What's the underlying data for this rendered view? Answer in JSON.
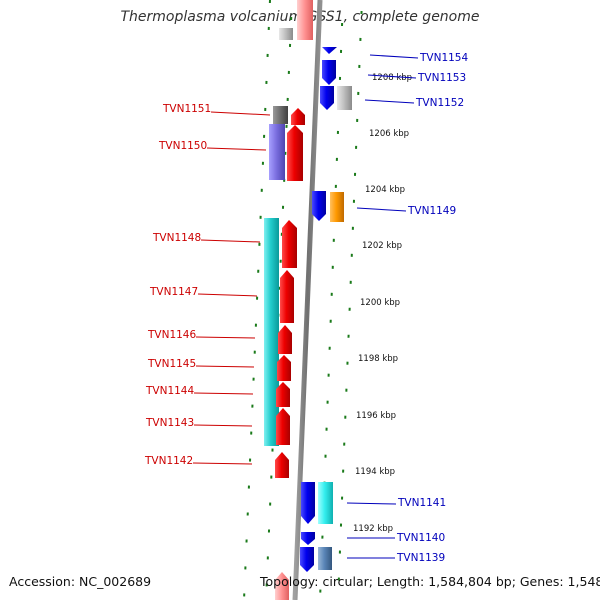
{
  "title": "Thermoplasma volcanium GSS1, complete genome",
  "accession": "Accession: NC_002689",
  "topology": "Topology: circular; Length: 1,584,804 bp; Genes: 1,548",
  "colors": {
    "left_label": "#cc0000",
    "right_label": "#0000bb",
    "dots": "#1a7a1a",
    "backbone": "#808080"
  },
  "kbp_labels": [
    "1208 kbp",
    "1206 kbp",
    "1204 kbp",
    "1202 kbp",
    "1200 kbp",
    "1198 kbp",
    "1196 kbp",
    "1194 kbp",
    "1192 kbp"
  ],
  "left_genes": [
    "TVN1151",
    "TVN1150",
    "TVN1148",
    "TVN1147",
    "TVN1146",
    "TVN1145",
    "TVN1144",
    "TVN1143",
    "TVN1142"
  ],
  "right_genes": [
    "TVN1154",
    "TVN1153",
    "TVN1152",
    "TVN1149",
    "TVN1141",
    "TVN1140",
    "TVN1139"
  ]
}
